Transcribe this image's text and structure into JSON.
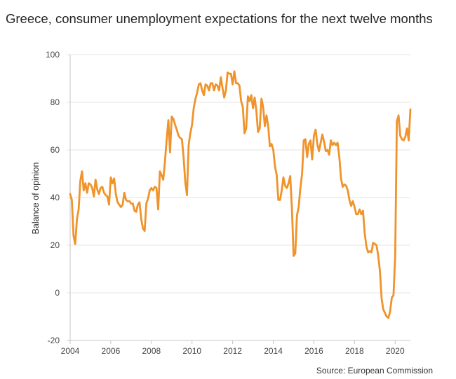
{
  "chart_data": {
    "type": "line",
    "title": "Greece, consumer unemployment expectations for the next twelve months",
    "ylabel": "Balance of opinion",
    "source": "Source: European Commission",
    "xlim": [
      2004,
      2020.75
    ],
    "ylim": [
      -20,
      100
    ],
    "xticks": [
      2004,
      2006,
      2008,
      2010,
      2012,
      2014,
      2016,
      2018,
      2020
    ],
    "yticks": [
      100,
      80,
      60,
      40,
      20,
      0,
      -20
    ],
    "grid": true,
    "x_start": 2004,
    "x_step": 0.0833333,
    "series": [
      {
        "values": [
          41.5,
          39,
          24,
          20.5,
          31,
          35,
          47,
          51,
          43,
          46,
          42,
          46,
          45.5,
          44,
          40.5,
          47.5,
          43.5,
          41.5,
          44,
          44.5,
          42,
          41,
          40.5,
          37,
          48.5,
          46,
          48,
          41.5,
          38,
          37,
          36,
          37,
          42,
          39,
          38.5,
          38.5,
          37.5,
          37.5,
          34.5,
          34,
          37,
          38,
          31,
          27,
          26,
          37.5,
          39.5,
          43,
          44,
          43,
          44.5,
          44,
          35,
          51,
          49.5,
          47.5,
          55,
          64,
          72.5,
          59,
          74,
          73,
          70.5,
          68.5,
          66,
          65,
          64.5,
          57,
          46.5,
          41,
          62,
          67,
          70.5,
          77.5,
          81.5,
          84,
          87.5,
          88,
          85,
          83,
          87.5,
          87,
          85,
          88,
          88,
          85,
          87.5,
          87,
          85,
          90.5,
          86,
          82,
          85,
          92.5,
          92,
          92,
          87.5,
          93,
          88,
          88,
          87,
          80.5,
          78,
          67,
          69,
          82.5,
          80.5,
          83,
          77.5,
          82,
          76.5,
          67.5,
          69,
          81.5,
          78,
          70,
          74.5,
          70,
          61.5,
          62.5,
          60,
          53,
          49.5,
          39,
          39,
          43,
          48.5,
          45,
          44,
          46,
          49,
          35.5,
          15.5,
          16.5,
          32.5,
          36,
          44,
          50,
          64,
          64.5,
          57,
          62.5,
          64,
          56,
          66,
          68.5,
          62.5,
          59.5,
          63,
          66.5,
          63.5,
          59.5,
          60,
          58,
          64,
          62,
          63,
          62,
          63,
          57,
          48,
          44.5,
          45.5,
          45,
          43,
          39,
          36.5,
          38.5,
          36,
          33,
          33,
          35,
          33,
          34.5,
          25,
          19.5,
          17,
          17.5,
          17,
          21,
          20.5,
          20,
          15.5,
          9,
          -2.5,
          -7,
          -8.5,
          -10,
          -10.5,
          -8,
          -2,
          -1,
          15,
          72,
          74.5,
          66,
          64.5,
          64,
          65.5,
          69,
          64,
          77
        ]
      }
    ]
  },
  "colors": {
    "line": "#F0932B",
    "negative_tick": "#E3342A",
    "grid": "#E4E4E4",
    "axis": "#C4C4C4"
  }
}
